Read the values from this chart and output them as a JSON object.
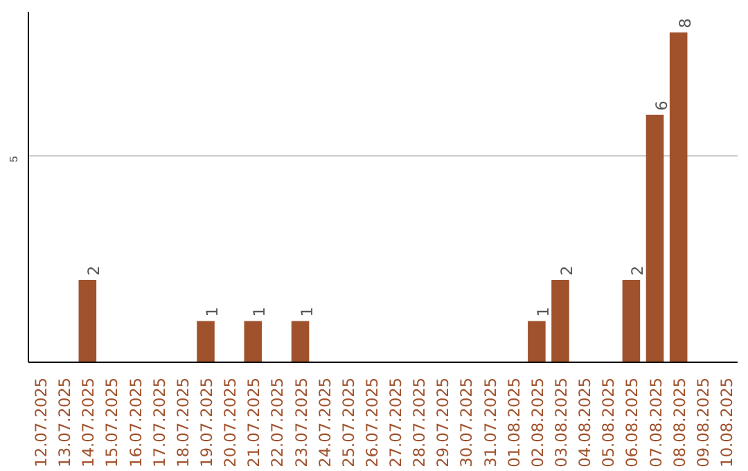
{
  "chart_data": {
    "type": "bar",
    "categories": [
      "12.07.2025",
      "13.07.2025",
      "14.07.2025",
      "15.07.2025",
      "16.07.2025",
      "17.07.2025",
      "18.07.2025",
      "19.07.2025",
      "20.07.2025",
      "21.07.2025",
      "22.07.2025",
      "23.07.2025",
      "24.07.2025",
      "25.07.2025",
      "26.07.2025",
      "27.07.2025",
      "28.07.2025",
      "29.07.2025",
      "30.07.2025",
      "31.07.2025",
      "01.08.2025",
      "02.08.2025",
      "03.08.2025",
      "04.08.2025",
      "05.08.2025",
      "06.08.2025",
      "07.08.2025",
      "08.08.2025",
      "09.08.2025",
      "10.08.2025"
    ],
    "values": [
      0,
      0,
      2,
      0,
      0,
      0,
      0,
      1,
      0,
      1,
      0,
      1,
      0,
      0,
      0,
      0,
      0,
      0,
      0,
      0,
      0,
      1,
      2,
      0,
      0,
      2,
      6,
      8,
      0,
      0
    ],
    "value_labels": [
      null,
      null,
      "2",
      null,
      null,
      null,
      null,
      "1",
      null,
      "1",
      null,
      "1",
      null,
      null,
      null,
      null,
      null,
      null,
      null,
      null,
      null,
      "1",
      "2",
      null,
      null,
      "2",
      "6",
      "8",
      null,
      null
    ],
    "color": "#a0522d",
    "ylim": [
      0,
      8.5
    ],
    "yticks": [
      5
    ],
    "grid": "y"
  }
}
